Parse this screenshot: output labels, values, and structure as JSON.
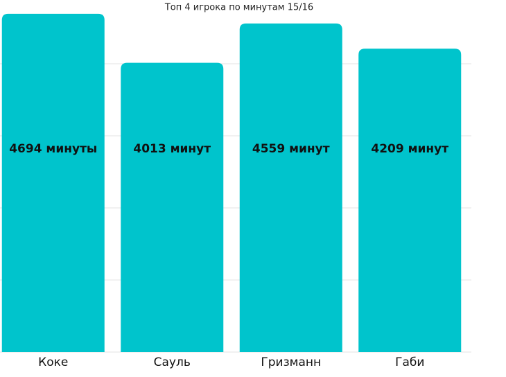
{
  "chart_data": {
    "type": "bar",
    "title": "Топ 4 игрока по минутам 15/16",
    "categories": [
      "Коке",
      "Сауль",
      "Гризманн",
      "Габи"
    ],
    "values": [
      4694,
      4013,
      4559,
      4209
    ],
    "value_labels": [
      "4694 минуты",
      "4013 минут",
      "4559 минут",
      "4209 минут"
    ],
    "color": "#00c4cc",
    "ylim": [
      0,
      4885
    ],
    "yticks": [
      0,
      1000,
      2000,
      3000,
      4000
    ],
    "grid": true
  }
}
